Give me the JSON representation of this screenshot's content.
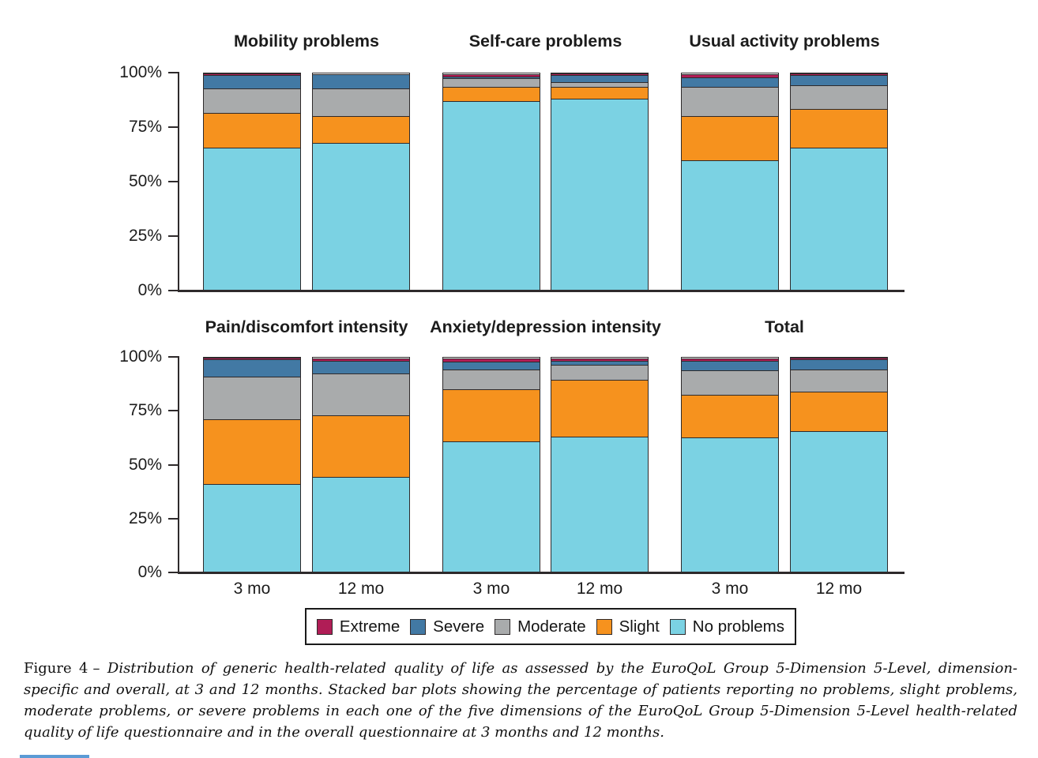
{
  "figure": {
    "caption_prefix": "Figure 4",
    "caption_text": "– Distribution of generic health-related quality of life as assessed by the EuroQoL Group 5-Dimension 5-Level, dimension-specific and overall, at 3 and 12 months. Stacked bar plots showing the percentage of patients reporting no problems, slight problems, moderate problems, or severe problems in each one of the five dimensions of the EuroQoL Group 5-Dimension 5-Level health-related quality of life questionnaire and in the overall questionnaire at 3 months and 12 months."
  },
  "chart_data": {
    "type": "bar",
    "variant": "stacked-percentage",
    "unit": "%",
    "categories": [
      "3 mo",
      "12 mo"
    ],
    "ylim": [
      0,
      100
    ],
    "ytick_labels": [
      "0%",
      "25%",
      "50%",
      "75%",
      "100%"
    ],
    "grid": false,
    "legend_position": "bottom",
    "stack_order_bottom_to_top": [
      "No problems",
      "Slight",
      "Moderate",
      "Severe",
      "Extreme"
    ],
    "legend": [
      {
        "label": "Extreme",
        "color": "#b01d56"
      },
      {
        "label": "Severe",
        "color": "#4279a4"
      },
      {
        "label": "Moderate",
        "color": "#a9abac"
      },
      {
        "label": "Slight",
        "color": "#f6921e"
      },
      {
        "label": "No problems",
        "color": "#7bd2e3"
      }
    ],
    "panels": [
      {
        "title": "Mobility problems",
        "series": [
          {
            "name": "No problems",
            "values": [
              66,
              68
            ]
          },
          {
            "name": "Slight",
            "values": [
              16,
              12.5
            ]
          },
          {
            "name": "Moderate",
            "values": [
              11.5,
              13
            ]
          },
          {
            "name": "Severe",
            "values": [
              6,
              6.5
            ]
          },
          {
            "name": "Extreme",
            "values": [
              0.5,
              0
            ]
          }
        ]
      },
      {
        "title": "Self-care problems",
        "series": [
          {
            "name": "No problems",
            "values": [
              87.5,
              88.5
            ]
          },
          {
            "name": "Slight",
            "values": [
              6.5,
              5.5
            ]
          },
          {
            "name": "Moderate",
            "values": [
              4,
              2.5
            ]
          },
          {
            "name": "Severe",
            "values": [
              1,
              3
            ]
          },
          {
            "name": "Extreme",
            "values": [
              1,
              0.5
            ]
          }
        ]
      },
      {
        "title": "Usual activity problems",
        "series": [
          {
            "name": "No problems",
            "values": [
              60,
              66
            ]
          },
          {
            "name": "Slight",
            "values": [
              20.5,
              18
            ]
          },
          {
            "name": "Moderate",
            "values": [
              13.5,
              11
            ]
          },
          {
            "name": "Severe",
            "values": [
              4.5,
              4.5
            ]
          },
          {
            "name": "Extreme",
            "values": [
              1.5,
              0.5
            ]
          }
        ]
      },
      {
        "title": "Pain/discomfort intensity",
        "series": [
          {
            "name": "No problems",
            "values": [
              41,
              44.5
            ]
          },
          {
            "name": "Slight",
            "values": [
              30.5,
              29
            ]
          },
          {
            "name": "Moderate",
            "values": [
              20,
              19.5
            ]
          },
          {
            "name": "Severe",
            "values": [
              8,
              6
            ]
          },
          {
            "name": "Extreme",
            "values": [
              0.5,
              1
            ]
          }
        ]
      },
      {
        "title": "Anxiety/depression intensity",
        "series": [
          {
            "name": "No problems",
            "values": [
              61,
              63.5
            ]
          },
          {
            "name": "Slight",
            "values": [
              24.5,
              26.5
            ]
          },
          {
            "name": "Moderate",
            "values": [
              9.5,
              7
            ]
          },
          {
            "name": "Severe",
            "values": [
              3.5,
              2
            ]
          },
          {
            "name": "Extreme",
            "values": [
              1.5,
              1
            ]
          }
        ]
      },
      {
        "title": "Total",
        "series": [
          {
            "name": "No problems",
            "values": [
              63,
              66
            ]
          },
          {
            "name": "Slight",
            "values": [
              20,
              18.5
            ]
          },
          {
            "name": "Moderate",
            "values": [
              11.5,
              10.5
            ]
          },
          {
            "name": "Severe",
            "values": [
              4.5,
              4.5
            ]
          },
          {
            "name": "Extreme",
            "values": [
              1,
              0.5
            ]
          }
        ]
      }
    ]
  }
}
